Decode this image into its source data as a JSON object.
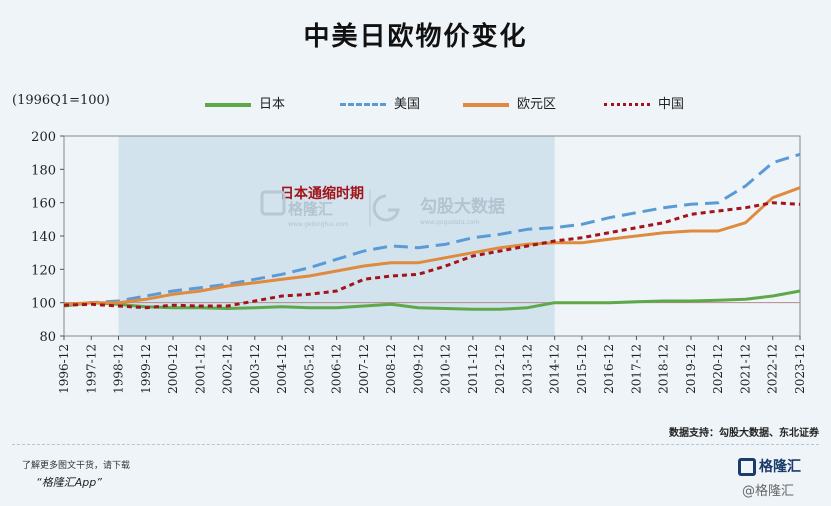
{
  "title": "中美日欧物价变化",
  "unit_label": "(1996Q1=100)",
  "shaded_label": "日本通缩时期",
  "watermark": {
    "name_cn": "格隆汇",
    "name_site": "www.gelonghui.com",
    "provider_cn": "勾股大数据",
    "provider_site": "www.gogudata.com"
  },
  "source": "数据支持：勾股大数据、东北证券",
  "promo": {
    "line1": "了解更多图文干货，请下载",
    "line2": "“格隆汇App”"
  },
  "brand": {
    "name": "格隆汇",
    "watermark": "@格隆汇"
  },
  "colors": {
    "background": "#eef4f8",
    "shade": "#d2e3ee",
    "japan": "#5fa84a",
    "usa": "#5b9bd5",
    "euro": "#e08a3e",
    "china": "#a3141a"
  },
  "chart_data": {
    "type": "line",
    "xlabel": "",
    "ylabel": "",
    "ylim": [
      80,
      200
    ],
    "yticks": [
      80,
      100,
      120,
      140,
      160,
      180,
      200
    ],
    "categories": [
      "1996-12",
      "1997-12",
      "1998-12",
      "1999-12",
      "2000-12",
      "2001-12",
      "2002-12",
      "2003-12",
      "2004-12",
      "2005-12",
      "2006-12",
      "2007-12",
      "2008-12",
      "2009-12",
      "2010-12",
      "2011-12",
      "2012-12",
      "2013-12",
      "2014-12",
      "2015-12",
      "2016-12",
      "2017-12",
      "2018-12",
      "2019-12",
      "2020-12",
      "2021-12",
      "2022-12",
      "2023-12"
    ],
    "shaded_range": [
      "1998-12",
      "2014-12"
    ],
    "reference_line": 100,
    "legend_position": "top",
    "series": [
      {
        "name": "日本",
        "key": "japan",
        "style": "solid",
        "values": [
          98,
          100,
          99,
          97.5,
          97,
          97,
          96.5,
          97,
          97.5,
          97,
          97,
          98,
          99,
          97,
          96.5,
          96,
          96,
          97,
          100,
          100,
          100,
          100.5,
          101,
          101,
          101.5,
          102,
          104,
          107
        ]
      },
      {
        "name": "美国",
        "key": "usa",
        "style": "dashed",
        "values": [
          99,
          100,
          101,
          104,
          107,
          109,
          111,
          114,
          117,
          121,
          126,
          131,
          134,
          133,
          135,
          139,
          141,
          144,
          145,
          147,
          151,
          154,
          157,
          159,
          160,
          170,
          184,
          189
        ]
      },
      {
        "name": "欧元区",
        "key": "euro",
        "style": "solid",
        "values": [
          99,
          100,
          100,
          102,
          105,
          107,
          110,
          112,
          114,
          116,
          119,
          122,
          124,
          124,
          127,
          130,
          133,
          135,
          136,
          136,
          138,
          140,
          142,
          143,
          143,
          148,
          163,
          169
        ]
      },
      {
        "name": "中国",
        "key": "china",
        "style": "dotted",
        "values": [
          98.5,
          99,
          98,
          97,
          98.5,
          98,
          98,
          101,
          104,
          105,
          107,
          114,
          116,
          117,
          122,
          128,
          131,
          134,
          137,
          139,
          142,
          145,
          148,
          153,
          155,
          157,
          160,
          159
        ]
      }
    ]
  }
}
